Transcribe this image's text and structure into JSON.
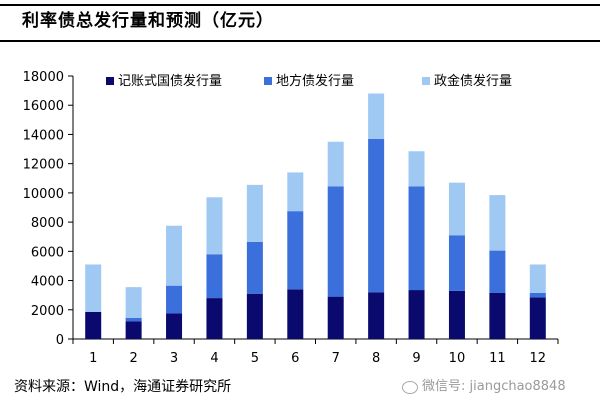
{
  "title": "利率债总发行量和预测（亿元）",
  "source": "资料来源：Wind，海通证券研究所",
  "watermark": "微信号: jiangchao8848",
  "colors": {
    "treasury": "#0a0a6e",
    "local": "#3b6fdb",
    "policy": "#9fc8f2"
  },
  "chart_data": {
    "type": "bar",
    "stacked": true,
    "categories": [
      "1",
      "2",
      "3",
      "4",
      "5",
      "6",
      "7",
      "8",
      "9",
      "10",
      "11",
      "12"
    ],
    "series": [
      {
        "name": "记账式国债发行量",
        "values": [
          1850,
          1200,
          1750,
          2800,
          3100,
          3400,
          2900,
          3200,
          3350,
          3300,
          3150,
          2850
        ]
      },
      {
        "name": "地方债发行量",
        "values": [
          0,
          250,
          1900,
          3000,
          3550,
          5350,
          7550,
          10500,
          7100,
          3800,
          2900,
          300
        ]
      },
      {
        "name": "政金债发行量",
        "values": [
          3250,
          2100,
          4100,
          3900,
          3900,
          2650,
          3050,
          3100,
          2400,
          3600,
          3800,
          1950
        ]
      }
    ],
    "ylim": [
      0,
      18000
    ],
    "yticks": [
      "0",
      "2000",
      "4000",
      "6000",
      "8000",
      "10000",
      "12000",
      "14000",
      "16000",
      "18000"
    ],
    "ytick_values": [
      0,
      2000,
      4000,
      6000,
      8000,
      10000,
      12000,
      14000,
      16000,
      18000
    ],
    "grid": false,
    "legend": "top"
  }
}
